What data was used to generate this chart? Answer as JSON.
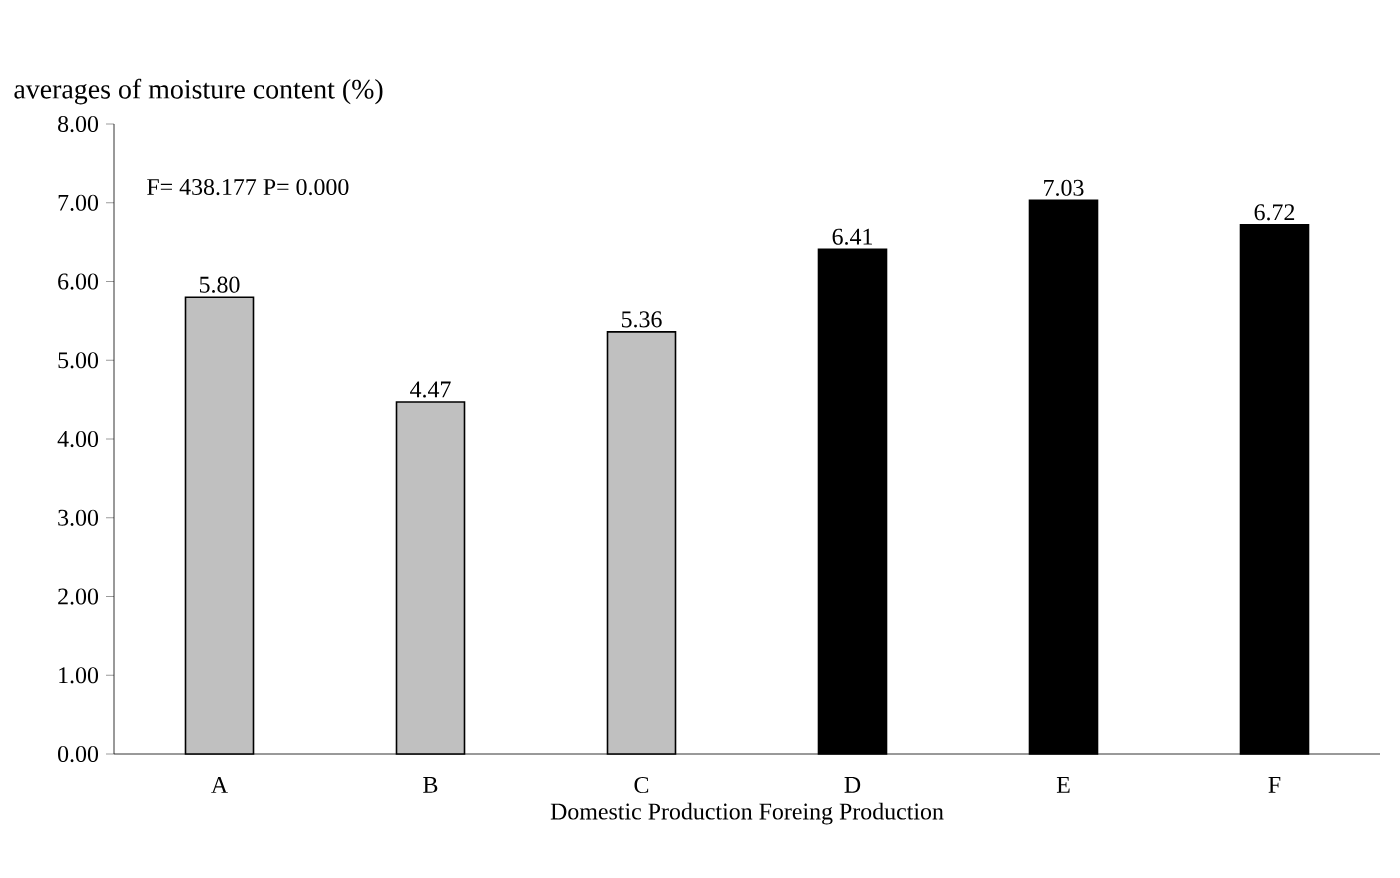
{
  "chart_data": {
    "type": "bar",
    "title": "averages of moisture content (%)",
    "xlabel": "Domestic  Production Foreing Production",
    "categories": [
      "A",
      "B",
      "C",
      "D",
      "E",
      "F"
    ],
    "values": [
      5.8,
      4.47,
      5.36,
      6.41,
      7.03,
      6.72
    ],
    "value_labels": [
      "5.80",
      "4.47",
      "5.36",
      "6.41",
      "7.03",
      "6.72"
    ],
    "colors": [
      "#c0c0c0",
      "#c0c0c0",
      "#c0c0c0",
      "#000000",
      "#000000",
      "#000000"
    ],
    "ylim": [
      0,
      8
    ],
    "yticks": [
      {
        "value": 0,
        "label": "0.00"
      },
      {
        "value": 1,
        "label": "1.00"
      },
      {
        "value": 2,
        "label": "2.00"
      },
      {
        "value": 3,
        "label": "3.00"
      },
      {
        "value": 4,
        "label": "4.00"
      },
      {
        "value": 5,
        "label": "5.00"
      },
      {
        "value": 6,
        "label": "6.00"
      },
      {
        "value": 7,
        "label": "7.00"
      },
      {
        "value": 8,
        "label": "8.00"
      }
    ],
    "annotations": [
      "F= 438.177   P= 0.000"
    ]
  }
}
